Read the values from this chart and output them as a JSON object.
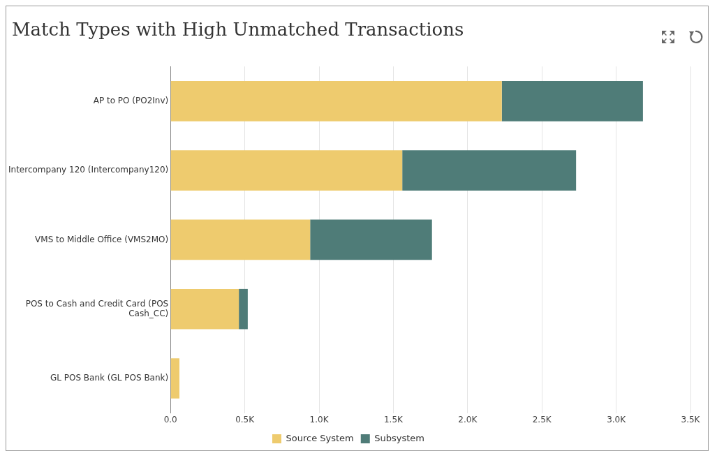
{
  "chart_data": {
    "type": "bar",
    "title": "Match Types with High Unmatched Transactions",
    "orientation": "horizontal",
    "stacked": true,
    "categories": [
      "AP to PO (PO2Inv)",
      "Intercompany 120 (Intercompany120)",
      "VMS to Middle Office (VMS2MO)",
      "POS to Cash and Credit Card (POS Cash_CC)",
      "GL POS Bank (GL POS Bank)"
    ],
    "series": [
      {
        "name": "Source System",
        "color": "#eecb6e",
        "values": [
          2230,
          1560,
          940,
          460,
          60
        ]
      },
      {
        "name": "Subsystem",
        "color": "#4f7c78",
        "values": [
          950,
          1170,
          820,
          60,
          0
        ]
      }
    ],
    "xlim": [
      0,
      3500
    ],
    "xticks": [
      {
        "value": 0,
        "label": "0.0"
      },
      {
        "value": 500,
        "label": "0.5K"
      },
      {
        "value": 1000,
        "label": "1.0K"
      },
      {
        "value": 1500,
        "label": "1.5K"
      },
      {
        "value": 2000,
        "label": "2.0K"
      },
      {
        "value": 2500,
        "label": "2.5K"
      },
      {
        "value": 3000,
        "label": "3.0K"
      },
      {
        "value": 3500,
        "label": "3.5K"
      }
    ],
    "grid": "x",
    "legend": "bottom"
  }
}
